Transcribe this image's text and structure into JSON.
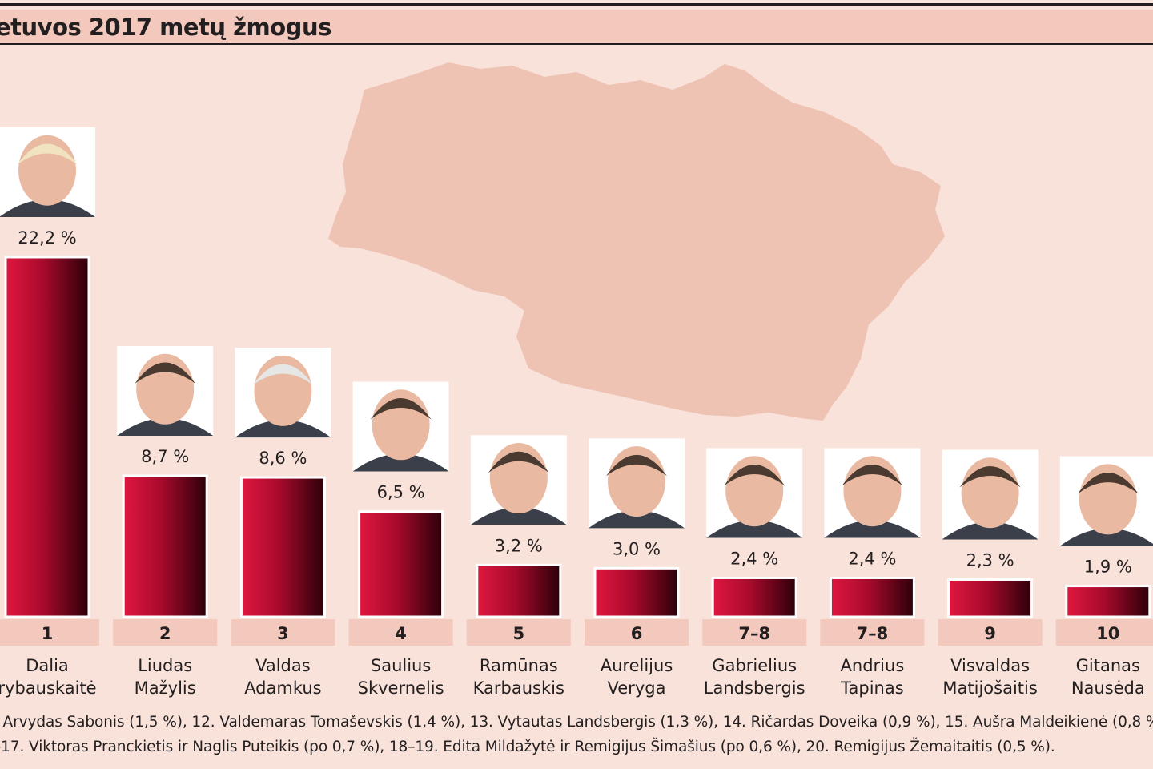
{
  "title": "etuvos 2017 metų žmogus",
  "colors": {
    "background": "#f8e2da",
    "title_band": "#f3c9bd",
    "bar_light": "#e0173f",
    "bar_dark": "#2b0009",
    "rank_band": "#f3c9bd",
    "map": "#efc3b4",
    "text": "#231f20"
  },
  "chart_data": {
    "type": "bar",
    "title": "etuvos 2017 metų žmogus",
    "value_unit": "%",
    "ylim": [
      0,
      22.2
    ],
    "grid": false,
    "legend": "none",
    "categories": [
      "Dalia Grybauskaitė",
      "Liudas Mažylis",
      "Valdas Adamkus",
      "Saulius Skvernelis",
      "Ramūnas Karbauskis",
      "Aurelijus Veryga",
      "Gabrielius Landsbergis",
      "Andrius Tapinas",
      "Visvaldas Matijošaitis",
      "Gitanas Nausėda"
    ],
    "values": [
      22.2,
      8.7,
      8.6,
      6.5,
      3.2,
      3.0,
      2.4,
      2.4,
      2.3,
      1.9
    ],
    "value_labels": [
      "22,2 %",
      "8,7 %",
      "8,6 %",
      "6,5 %",
      "3,2 %",
      "3,0 %",
      "2,4 %",
      "2,4 %",
      "2,3 %",
      "1,9 %"
    ],
    "ranks": [
      "1",
      "2",
      "3",
      "4",
      "5",
      "6",
      "7–8",
      "7–8",
      "9",
      "10"
    ],
    "names": [
      [
        "Dalia",
        "rybauskaitė"
      ],
      [
        "Liudas",
        "Mažylis"
      ],
      [
        "Valdas",
        "Adamkus"
      ],
      [
        "Saulius",
        "Skvernelis"
      ],
      [
        "Ramūnas",
        "Karbauskis"
      ],
      [
        "Aurelijus",
        "Veryga"
      ],
      [
        "Gabrielius",
        "Landsbergis"
      ],
      [
        "Andrius",
        "Tapinas"
      ],
      [
        "Visvaldas",
        "Matijošaitis"
      ],
      [
        "Gitanas",
        "Nausėda"
      ]
    ]
  },
  "footer": {
    "line1": ". Arvydas Sabonis (1,5 %), 12. Valdemaras Tomaševskis (1,4 %), 13. Vytautas Landsbergis (1,3 %), 14. Ričardas Doveika (0,9 %), 15. Aušra Maldeikienė (0,8 %",
    "line2": "–17. Viktoras Pranckietis ir Naglis Puteikis (po 0,7 %), 18–19. Edita Mildažytė ir Remigijus Šimašius (po 0,6 %), 20. Remigijus Žemaitaitis (0,5 %)."
  }
}
